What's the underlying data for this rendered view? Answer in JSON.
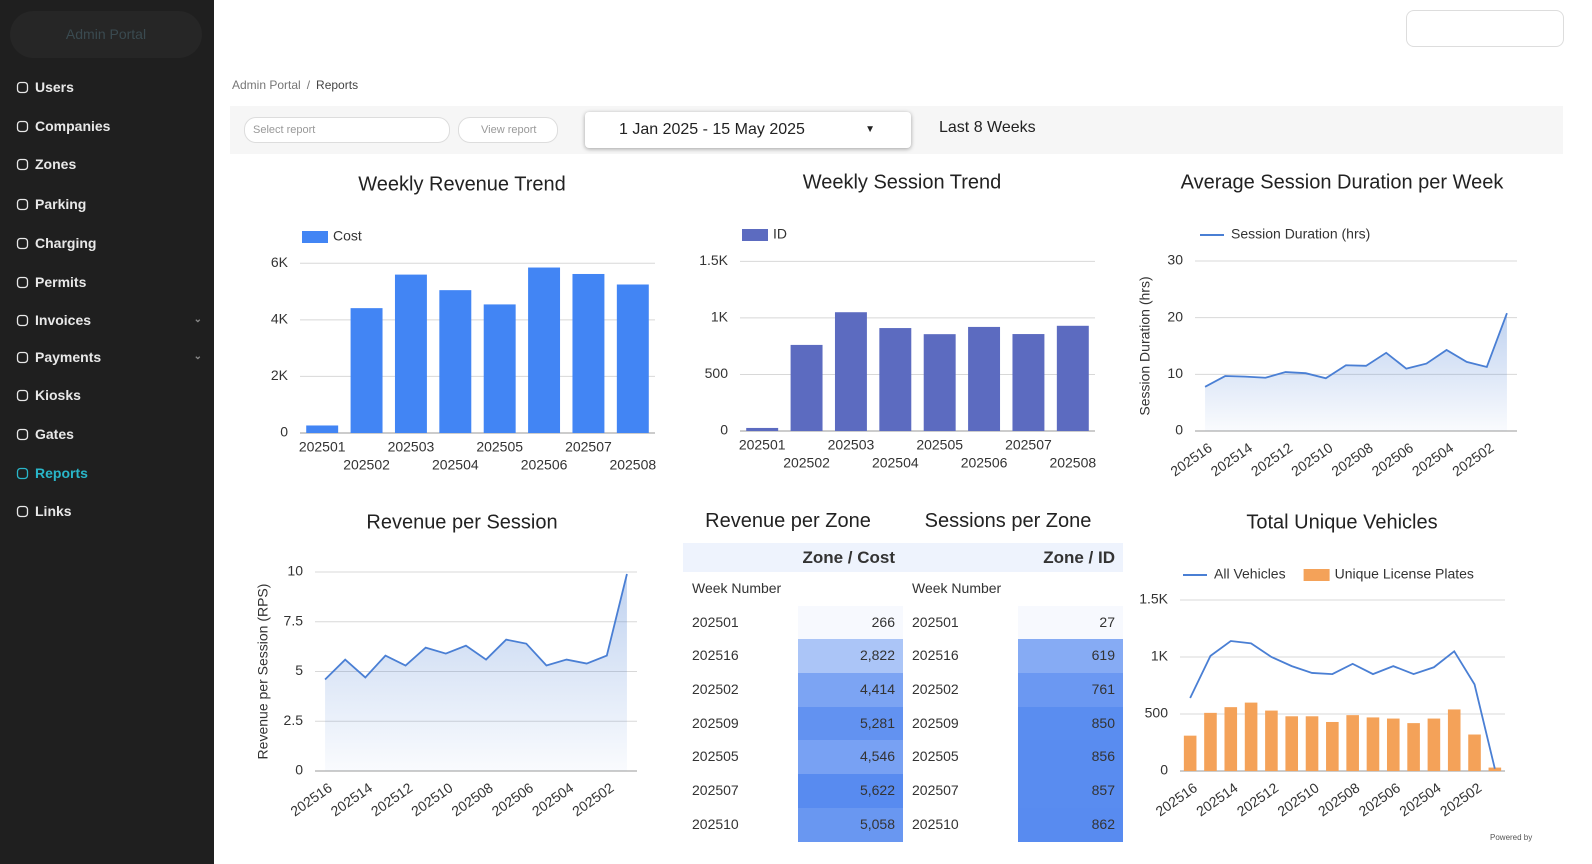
{
  "sidebar": {
    "brand": "Admin Portal",
    "items": [
      {
        "label": "Users"
      },
      {
        "label": "Companies"
      },
      {
        "label": "Zones"
      },
      {
        "label": "Parking"
      },
      {
        "label": "Charging"
      },
      {
        "label": "Permits"
      },
      {
        "label": "Invoices",
        "submenu": true
      },
      {
        "label": "Payments",
        "submenu": true
      },
      {
        "label": "Kiosks"
      },
      {
        "label": "Gates"
      },
      {
        "label": "Reports",
        "active": true
      },
      {
        "label": "Links"
      }
    ]
  },
  "breadcrumb": {
    "items": [
      "Admin Portal",
      "Reports"
    ],
    "separator": "/"
  },
  "toolbar": {
    "report_select": "Select report",
    "view_button": "View report",
    "date_range": "1 Jan 2025 - 15 May 2025",
    "period": "Last 8 Weeks"
  },
  "footer": "Powered by",
  "chart_data": [
    {
      "type": "bar",
      "title": "Weekly Revenue Trend",
      "categories": [
        "202501",
        "202502",
        "202503",
        "202504",
        "202505",
        "202506",
        "202507",
        "202508"
      ],
      "series": [
        {
          "name": "Cost",
          "color": "#4285f4",
          "values": [
            266,
            4414,
            5600,
            5050,
            4546,
            5850,
            5622,
            5250
          ]
        }
      ],
      "ylim": [
        0,
        7000
      ],
      "yticks": [
        0,
        {
          "value": 2000,
          "label": "2K"
        },
        {
          "value": 4000,
          "label": "4K"
        },
        {
          "value": 6000,
          "label": "6K"
        }
      ],
      "grid": true
    },
    {
      "type": "bar",
      "title": "Weekly Session Trend",
      "categories": [
        "202501",
        "202502",
        "202503",
        "202504",
        "202505",
        "202506",
        "202507",
        "202508"
      ],
      "series": [
        {
          "name": "ID",
          "color": "#5c6bc0",
          "values": [
            27,
            761,
            1050,
            910,
            856,
            920,
            857,
            930
          ]
        }
      ],
      "ylim": [
        0,
        1600
      ],
      "yticks": [
        0,
        500,
        {
          "value": 1000,
          "label": "1K"
        },
        {
          "value": 1500,
          "label": "1.5K"
        }
      ],
      "grid": true
    },
    {
      "type": "line",
      "title": "Average Session Duration per Week",
      "y_label": "Session Duration (hrs)",
      "area": true,
      "categories": [
        "202516",
        null,
        "202514",
        null,
        "202512",
        null,
        "202510",
        null,
        "202508",
        null,
        "202506",
        null,
        "202504",
        null,
        "202502",
        null
      ],
      "series": [
        {
          "name": "Session Duration (hrs)",
          "color": "#4a7fd4",
          "values": [
            7.8,
            9.7,
            9.6,
            9.4,
            10.4,
            10.2,
            9.3,
            11.6,
            11.5,
            13.8,
            11.0,
            11.9,
            14.3,
            12.2,
            11.3,
            20.8
          ]
        }
      ],
      "ylim": [
        0,
        30
      ],
      "yticks": [
        0,
        10,
        20,
        30
      ],
      "grid": true
    },
    {
      "type": "line",
      "title": "Revenue per Session",
      "y_label": "Revenue per Session (RPS)",
      "area": true,
      "categories": [
        "202516",
        null,
        "202514",
        null,
        "202512",
        null,
        "202510",
        null,
        "202508",
        null,
        "202506",
        null,
        "202504",
        null,
        "202502",
        null
      ],
      "series": [
        {
          "color": "#4a7fd4",
          "values": [
            4.6,
            5.6,
            4.7,
            5.8,
            5.3,
            6.2,
            5.9,
            6.3,
            5.6,
            6.6,
            6.4,
            5.3,
            5.6,
            5.4,
            5.8,
            9.9
          ]
        }
      ],
      "ylim": [
        0,
        10
      ],
      "yticks": [
        0,
        2.5,
        5,
        7.5,
        10
      ],
      "grid": true
    },
    {
      "type": "line",
      "title": "Total Unique Vehicles",
      "categories": [
        "202516",
        null,
        "202514",
        null,
        "202512",
        null,
        "202510",
        null,
        "202508",
        null,
        "202506",
        null,
        "202504",
        null,
        "202502",
        null
      ],
      "series": [
        {
          "name": "All Vehicles",
          "color": "#4a7fd4",
          "values": [
            640,
            1010,
            1140,
            1120,
            1000,
            920,
            860,
            850,
            940,
            850,
            920,
            850,
            910,
            1050,
            760,
            20
          ]
        },
        {
          "name": "Unique License Plates",
          "type": "bar",
          "color": "#f4a259",
          "values": [
            310,
            510,
            560,
            600,
            530,
            480,
            480,
            430,
            490,
            470,
            460,
            420,
            460,
            540,
            320,
            30
          ]
        }
      ],
      "ylim": [
        0,
        1500
      ],
      "yticks": [
        0,
        500,
        {
          "value": 1000,
          "label": "1K"
        },
        {
          "value": 1500,
          "label": "1.5K"
        }
      ],
      "grid": true
    }
  ],
  "tables": [
    {
      "title": "Revenue per Zone",
      "header": "Zone / Cost",
      "row_header": "Week Number",
      "rows": [
        [
          "202501",
          "266"
        ],
        [
          "202516",
          "2,822"
        ],
        [
          "202502",
          "4,414"
        ],
        [
          "202509",
          "5,281"
        ],
        [
          "202505",
          "4,546"
        ],
        [
          "202507",
          "5,622"
        ],
        [
          "202510",
          "5,058"
        ]
      ]
    },
    {
      "title": "Sessions per Zone",
      "header": "Zone / ID",
      "row_header": "Week Number",
      "rows": [
        [
          "202501",
          "27"
        ],
        [
          "202516",
          "619"
        ],
        [
          "202502",
          "761"
        ],
        [
          "202509",
          "850"
        ],
        [
          "202505",
          "856"
        ],
        [
          "202507",
          "857"
        ],
        [
          "202510",
          "862"
        ]
      ]
    }
  ]
}
